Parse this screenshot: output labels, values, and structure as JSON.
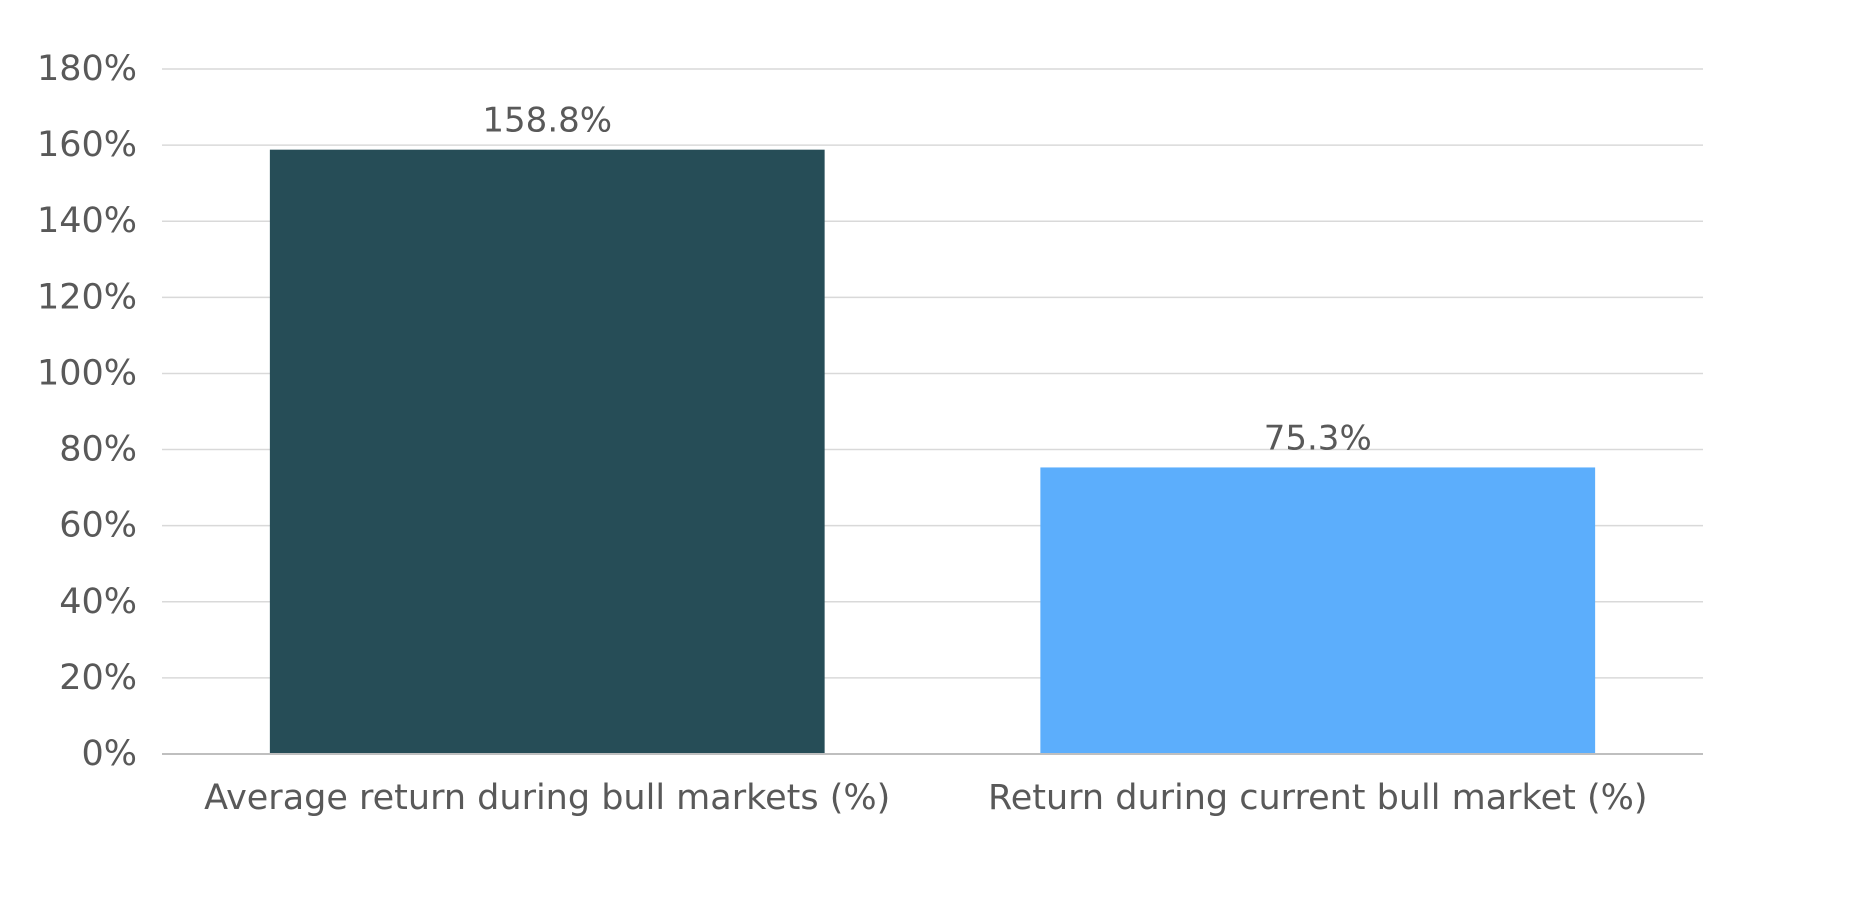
{
  "chart_data": {
    "type": "bar",
    "categories": [
      "Average return during bull markets (%)",
      "Return during current bull market (%)"
    ],
    "values": [
      158.8,
      75.3
    ],
    "data_labels": [
      "158.8%",
      "75.3%"
    ],
    "bar_colors": [
      "#264d57",
      "#5caefc"
    ],
    "ylim": [
      0,
      180
    ],
    "yticks": [
      0,
      20,
      40,
      60,
      80,
      100,
      120,
      140,
      160,
      180
    ],
    "ytick_labels": [
      "0%",
      "20%",
      "40%",
      "60%",
      "80%",
      "100%",
      "120%",
      "140%",
      "160%",
      "180%"
    ],
    "grid": true,
    "legend": "none",
    "title": "",
    "xlabel": "",
    "ylabel": ""
  }
}
